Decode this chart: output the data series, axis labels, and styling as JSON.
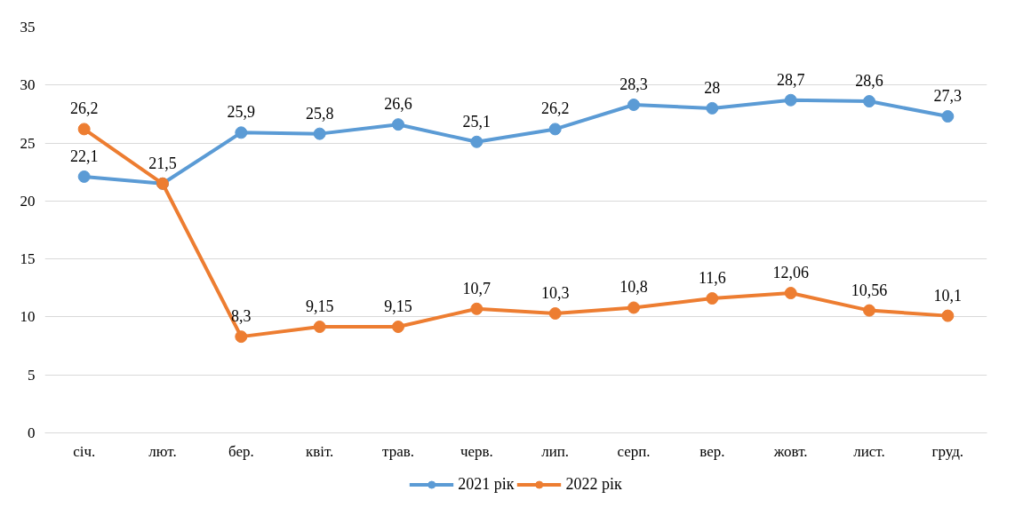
{
  "chart_data": {
    "type": "line",
    "categories": [
      "січ.",
      "лют.",
      "бер.",
      "квіт.",
      "трав.",
      "черв.",
      "лип.",
      "серп.",
      "вер.",
      "жовт.",
      "лист.",
      "груд."
    ],
    "series": [
      {
        "name": "2021 рік",
        "color": "#5b9bd5",
        "values": [
          22.1,
          21.5,
          25.9,
          25.8,
          26.6,
          25.1,
          26.2,
          28.3,
          28,
          28.7,
          28.6,
          27.3
        ],
        "value_labels": [
          "22,1",
          "21,5",
          "25,9",
          "25,8",
          "26,6",
          "25,1",
          "26,2",
          "28,3",
          "28",
          "28,7",
          "28,6",
          "27,3"
        ]
      },
      {
        "name": "2022 рік",
        "color": "#ed7d31",
        "values": [
          26.2,
          21.5,
          8.3,
          9.15,
          9.15,
          10.7,
          10.3,
          10.8,
          11.6,
          12.06,
          10.56,
          10.1
        ],
        "value_labels": [
          "26,2",
          null,
          "8,3",
          "9,15",
          "9,15",
          "10,7",
          "10,3",
          "10,8",
          "11,6",
          "12,06",
          "10,56",
          "10,1"
        ]
      }
    ],
    "ylim": [
      0,
      35
    ],
    "yticks": [
      0,
      5,
      10,
      15,
      20,
      25,
      30,
      35
    ],
    "grid": "y",
    "legend": "bottom",
    "marker": "circle",
    "line_style": "solid"
  }
}
